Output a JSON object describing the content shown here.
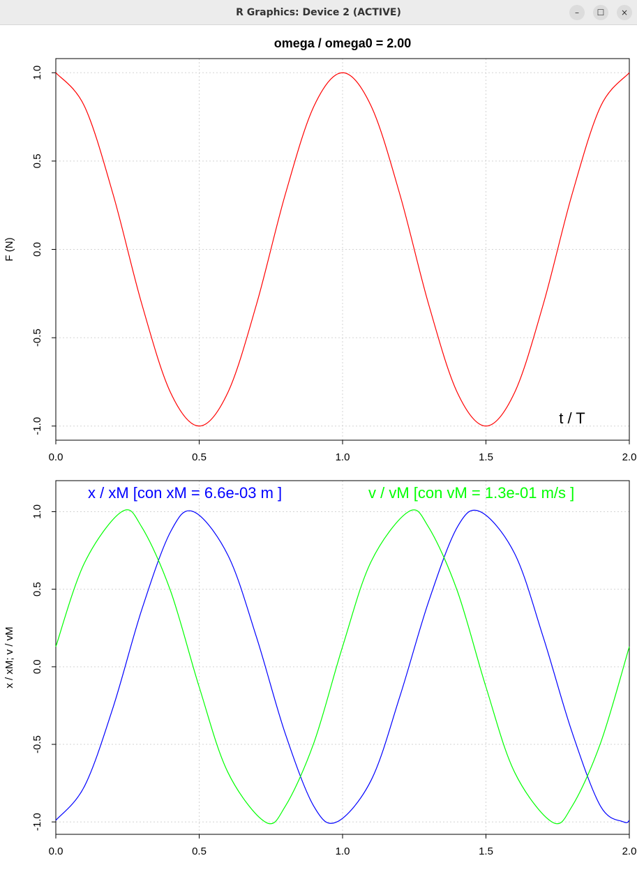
{
  "window": {
    "title": "R Graphics: Device 2 (ACTIVE)",
    "buttons": {
      "minimize": "–",
      "maximize": "☐",
      "close": "×"
    }
  },
  "chart_data": [
    {
      "type": "line",
      "title": "omega / omega0  =  2.00",
      "xlabel": "",
      "ylabel": "F (N)",
      "annotation": "t / T",
      "xlim": [
        0,
        2
      ],
      "ylim": [
        -1.08,
        1.08
      ],
      "xticks": [
        "0.0",
        "0.5",
        "1.0",
        "1.5",
        "2.0"
      ],
      "yticks": [
        "-1.0",
        "-0.5",
        "0.0",
        "0.5",
        "1.0"
      ],
      "grid": true,
      "series": [
        {
          "color": "#ff0000",
          "x": [
            0,
            0.1,
            0.2,
            0.3,
            0.4,
            0.5,
            0.6,
            0.7,
            0.8,
            0.9,
            1.0,
            1.1,
            1.2,
            1.3,
            1.4,
            1.5,
            1.6,
            1.7,
            1.8,
            1.9,
            2.0
          ],
          "y": [
            1.0,
            0.81,
            0.31,
            -0.31,
            -0.81,
            -1.0,
            -0.81,
            -0.31,
            0.31,
            0.81,
            1.0,
            0.81,
            0.31,
            -0.31,
            -0.81,
            -1.0,
            -0.81,
            -0.31,
            0.31,
            0.81,
            1.0
          ]
        }
      ]
    },
    {
      "type": "line",
      "title": "",
      "xlabel": "",
      "ylabel": "x / xM;  v / vM",
      "xlim": [
        0,
        2
      ],
      "ylim": [
        -1.08,
        1.2
      ],
      "xticks": [
        "0.0",
        "0.5",
        "1.0",
        "1.5",
        "2.0"
      ],
      "yticks": [
        "-1.0",
        "-0.5",
        "0.0",
        "0.5",
        "1.0"
      ],
      "grid": true,
      "series": [
        {
          "name": "x / xM  [con  xM = 6.6e-03 m ]",
          "color": "#0000ff",
          "x": [
            0,
            0.1,
            0.2,
            0.3,
            0.4,
            0.48,
            0.6,
            0.7,
            0.8,
            0.9,
            0.98,
            1.1,
            1.2,
            1.3,
            1.4,
            1.48,
            1.6,
            1.7,
            1.8,
            1.9,
            1.98,
            2.0
          ],
          "y": [
            -0.99,
            -0.77,
            -0.26,
            0.37,
            0.87,
            1.0,
            0.72,
            0.19,
            -0.43,
            -0.9,
            -1.0,
            -0.73,
            -0.19,
            0.42,
            0.9,
            1.0,
            0.73,
            0.19,
            -0.42,
            -0.9,
            -1.0,
            -0.99
          ]
        },
        {
          "name": "v / vM  [con  vM = 1.3e-01 m/s ]",
          "color": "#00ff00",
          "x": [
            0,
            0.1,
            0.23,
            0.3,
            0.4,
            0.5,
            0.6,
            0.73,
            0.8,
            0.9,
            1.0,
            1.1,
            1.23,
            1.3,
            1.4,
            1.5,
            1.6,
            1.73,
            1.8,
            1.9,
            2.0
          ],
          "y": [
            0.13,
            0.67,
            1.0,
            0.9,
            0.49,
            -0.13,
            -0.68,
            -1.0,
            -0.9,
            -0.49,
            0.13,
            0.68,
            1.0,
            0.9,
            0.49,
            -0.13,
            -0.68,
            -1.0,
            -0.9,
            -0.49,
            0.13
          ]
        }
      ]
    }
  ]
}
